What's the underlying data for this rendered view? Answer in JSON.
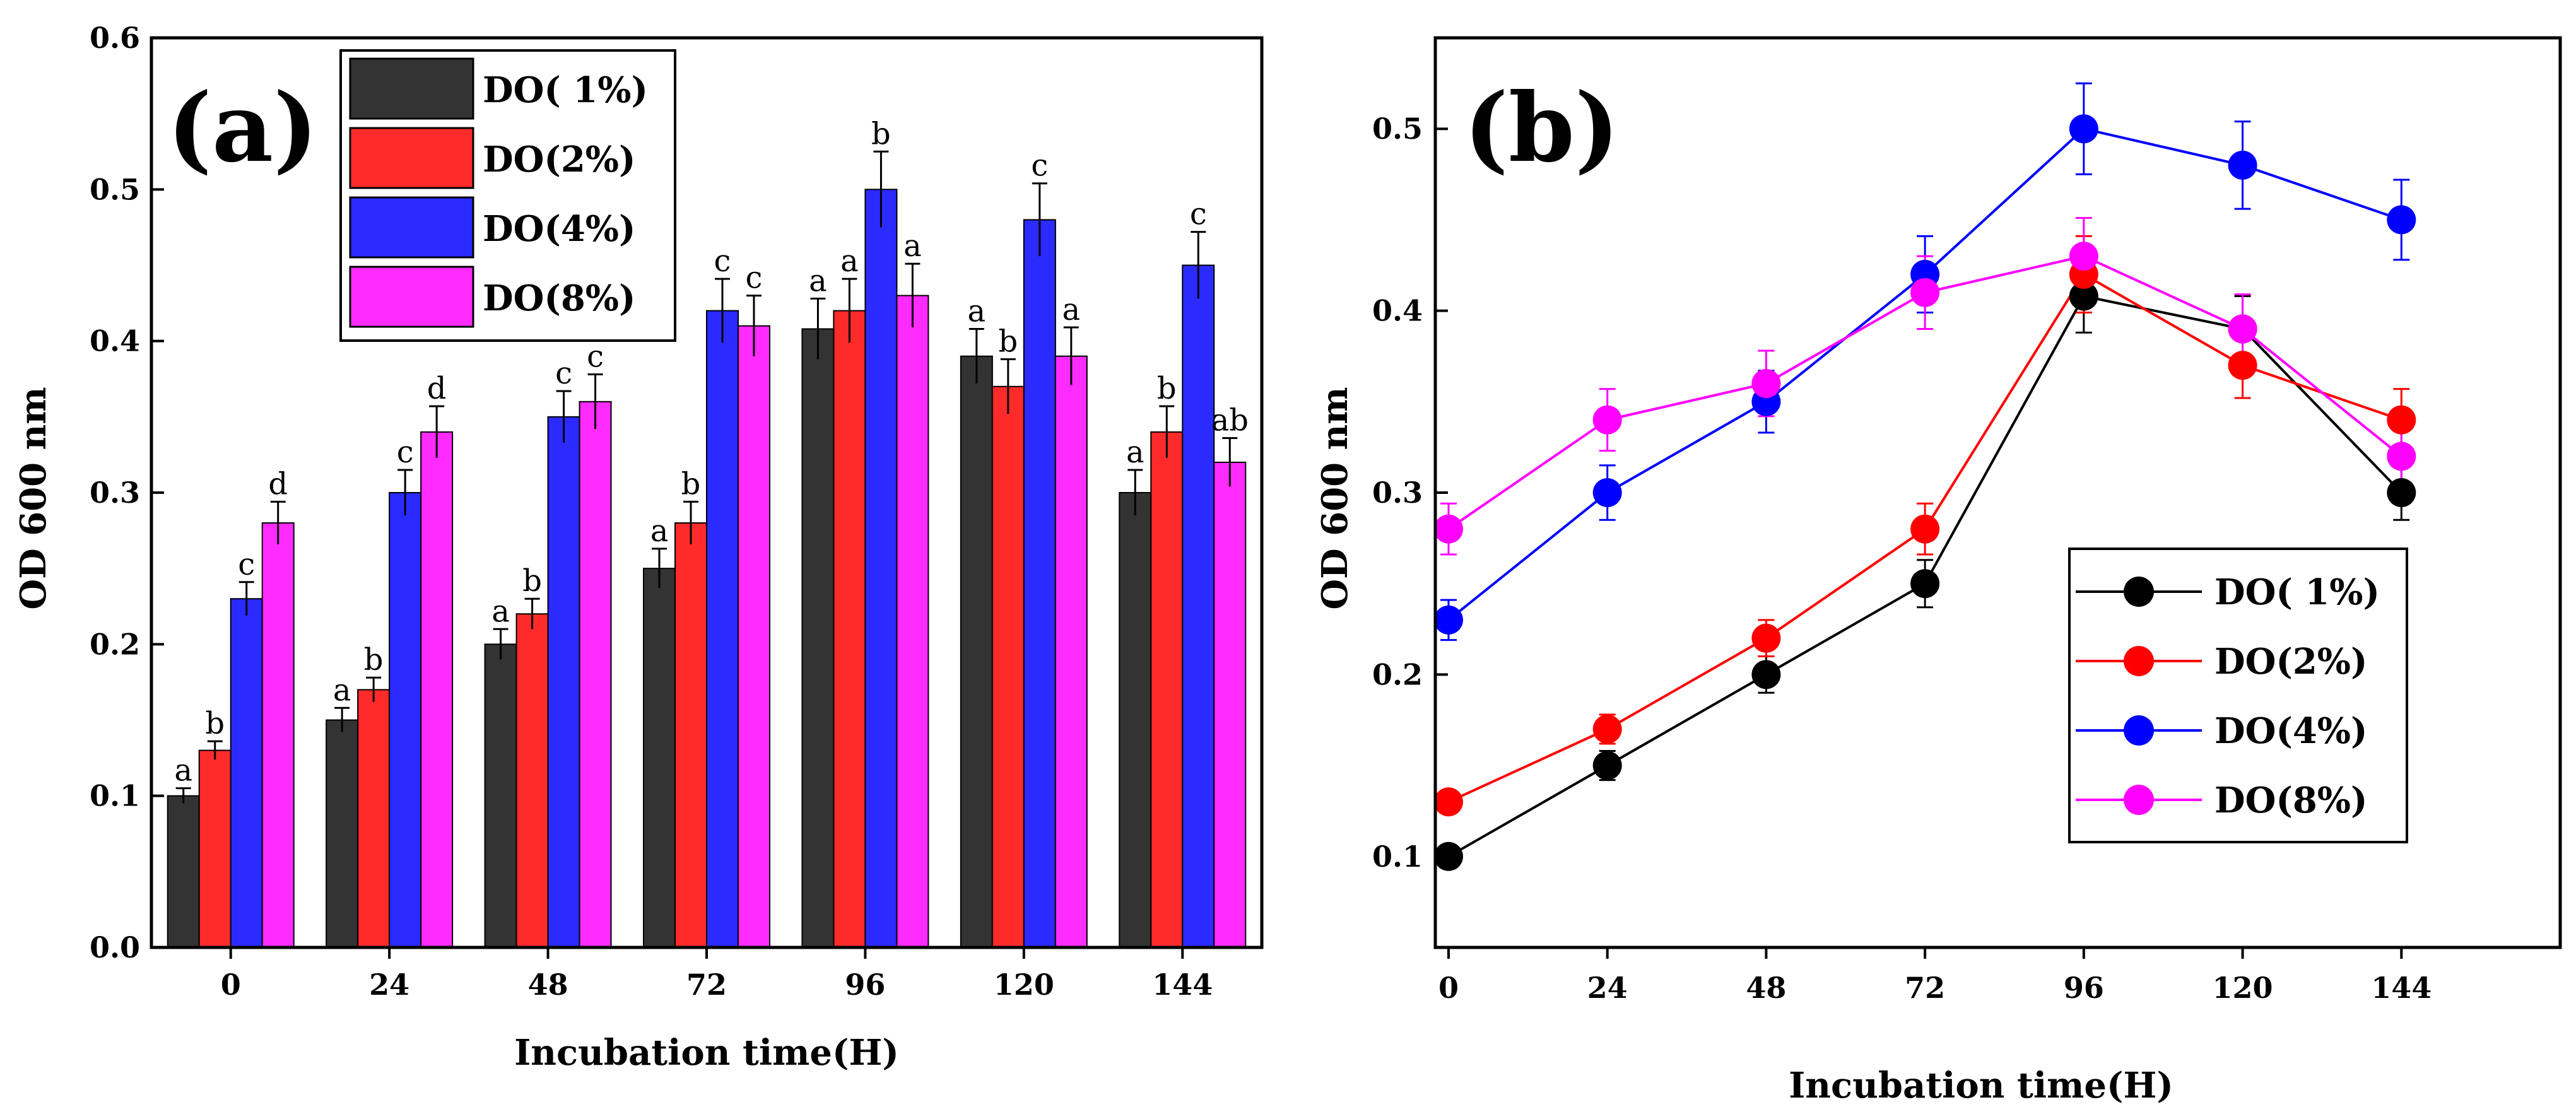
{
  "chart_data": [
    {
      "type": "bar",
      "panel_label": "(a)",
      "categories": [
        "0",
        "24",
        "48",
        "72",
        "96",
        "120",
        "144"
      ],
      "xlabel": "Incubation time(H)",
      "ylabel": "OD 600 nm",
      "ylim": [
        0,
        0.6
      ],
      "yticks": [
        "0.0",
        "0.1",
        "0.2",
        "0.3",
        "0.4",
        "0.5",
        "0.6"
      ],
      "legend_position": "top-center",
      "series": [
        {
          "name": "DO( 1%)",
          "color": "#333333",
          "values": [
            0.1,
            0.15,
            0.2,
            0.25,
            0.408,
            0.39,
            0.3
          ],
          "errors": [
            0.005,
            0.008,
            0.01,
            0.013,
            0.02,
            0.018,
            0.015
          ],
          "labels": [
            "a",
            "a",
            "a",
            "a",
            "a",
            "a",
            "a"
          ]
        },
        {
          "name": "DO(2%)",
          "color": "#ff2b2b",
          "values": [
            0.13,
            0.17,
            0.22,
            0.28,
            0.42,
            0.37,
            0.34
          ],
          "errors": [
            0.006,
            0.008,
            0.01,
            0.014,
            0.021,
            0.018,
            0.017
          ],
          "labels": [
            "b",
            "b",
            "b",
            "b",
            "a",
            "b",
            "b"
          ]
        },
        {
          "name": "DO(4%)",
          "color": "#2b2bff",
          "values": [
            0.23,
            0.3,
            0.35,
            0.42,
            0.5,
            0.48,
            0.45
          ],
          "errors": [
            0.011,
            0.015,
            0.017,
            0.021,
            0.025,
            0.024,
            0.022
          ],
          "labels": [
            "c",
            "c",
            "c",
            "c",
            "b",
            "c",
            "c"
          ]
        },
        {
          "name": "DO(8%)",
          "color": "#ff2bff",
          "values": [
            0.28,
            0.34,
            0.36,
            0.41,
            0.43,
            0.39,
            0.32
          ],
          "errors": [
            0.014,
            0.017,
            0.018,
            0.02,
            0.021,
            0.019,
            0.016
          ],
          "labels": [
            "d",
            "d",
            "c",
            "c",
            "a",
            "a",
            "ab"
          ]
        }
      ]
    },
    {
      "type": "line",
      "panel_label": "(b)",
      "x": [
        0,
        24,
        48,
        72,
        96,
        120,
        144
      ],
      "xticks": [
        "0",
        "24",
        "48",
        "72",
        "96",
        "120",
        "144"
      ],
      "xlabel": "Incubation time(H)",
      "ylabel": "OD 600 nm",
      "xlim": [
        -2,
        168
      ],
      "ylim": [
        0.05,
        0.55
      ],
      "yticks": [
        "0.1",
        "0.2",
        "0.3",
        "0.4",
        "0.5"
      ],
      "legend_position": "bottom-right",
      "series": [
        {
          "name": "DO( 1%)",
          "color": "#000000",
          "values": [
            0.1,
            0.15,
            0.2,
            0.25,
            0.408,
            0.39,
            0.3
          ],
          "errors": [
            0.005,
            0.008,
            0.01,
            0.013,
            0.02,
            0.018,
            0.015
          ]
        },
        {
          "name": "DO(2%)",
          "color": "#ff0000",
          "values": [
            0.13,
            0.17,
            0.22,
            0.28,
            0.42,
            0.37,
            0.34
          ],
          "errors": [
            0.006,
            0.008,
            0.01,
            0.014,
            0.021,
            0.018,
            0.017
          ]
        },
        {
          "name": "DO(4%)",
          "color": "#0000ff",
          "values": [
            0.23,
            0.3,
            0.35,
            0.42,
            0.5,
            0.48,
            0.45
          ],
          "errors": [
            0.011,
            0.015,
            0.017,
            0.021,
            0.025,
            0.024,
            0.022
          ]
        },
        {
          "name": "DO(8%)",
          "color": "#ff00ff",
          "values": [
            0.28,
            0.34,
            0.36,
            0.41,
            0.43,
            0.39,
            0.32
          ],
          "errors": [
            0.014,
            0.017,
            0.018,
            0.02,
            0.021,
            0.019,
            0.016
          ]
        }
      ]
    }
  ]
}
